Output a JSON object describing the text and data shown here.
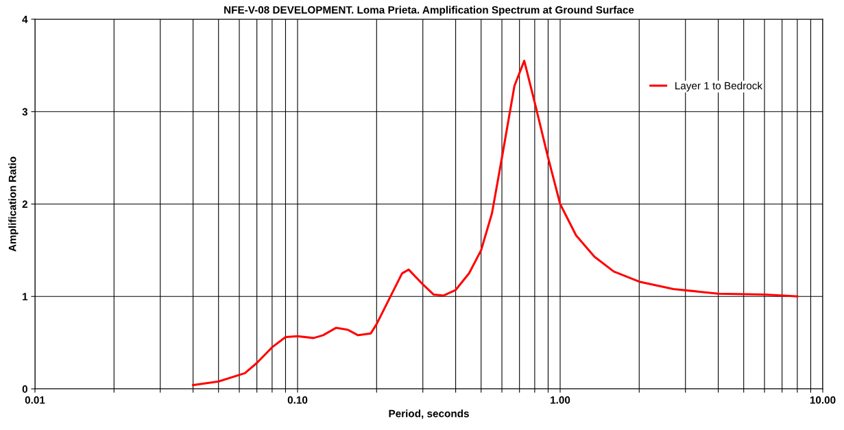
{
  "chart_data": {
    "type": "line",
    "title": "NFE-V-08 DEVELOPMENT. Loma Prieta. Amplification Spectrum at Ground Surface",
    "xlabel": "Period, seconds",
    "ylabel": "Amplification Ratio",
    "log": "x",
    "x": [
      0.04,
      0.05,
      0.063,
      0.07,
      0.08,
      0.09,
      0.1,
      0.115,
      0.125,
      0.14,
      0.155,
      0.17,
      0.19,
      0.2,
      0.25,
      0.265,
      0.3,
      0.33,
      0.36,
      0.4,
      0.45,
      0.5,
      0.55,
      0.6,
      0.67,
      0.73,
      0.8,
      0.9,
      1.0,
      1.15,
      1.35,
      1.6,
      2.0,
      2.7,
      4.0,
      6.0,
      8.0
    ],
    "series": [
      {
        "name": "Layer 1 to Bedrock",
        "color": "#ff0000",
        "values": [
          0.04,
          0.08,
          0.17,
          0.28,
          0.45,
          0.56,
          0.57,
          0.55,
          0.58,
          0.66,
          0.64,
          0.58,
          0.6,
          0.7,
          1.25,
          1.29,
          1.13,
          1.02,
          1.01,
          1.07,
          1.25,
          1.5,
          1.9,
          2.5,
          3.28,
          3.55,
          3.1,
          2.5,
          2.0,
          1.66,
          1.43,
          1.27,
          1.16,
          1.08,
          1.03,
          1.02,
          1.0
        ]
      }
    ],
    "xlim": [
      0.01,
      10
    ],
    "ylim": [
      0,
      4
    ],
    "xticks": [
      {
        "value": 0.01,
        "label": "0.01"
      },
      {
        "value": 0.02,
        "label": null
      },
      {
        "value": 0.03,
        "label": null
      },
      {
        "value": 0.04,
        "label": null
      },
      {
        "value": 0.05,
        "label": null
      },
      {
        "value": 0.06,
        "label": null
      },
      {
        "value": 0.07,
        "label": null
      },
      {
        "value": 0.08,
        "label": null
      },
      {
        "value": 0.09,
        "label": null
      },
      {
        "value": 0.1,
        "label": "0.10"
      },
      {
        "value": 0.2,
        "label": null
      },
      {
        "value": 0.3,
        "label": null
      },
      {
        "value": 0.4,
        "label": null
      },
      {
        "value": 0.5,
        "label": null
      },
      {
        "value": 0.6,
        "label": null
      },
      {
        "value": 0.7,
        "label": null
      },
      {
        "value": 0.8,
        "label": null
      },
      {
        "value": 0.9,
        "label": null
      },
      {
        "value": 1,
        "label": "1.00"
      },
      {
        "value": 2,
        "label": null
      },
      {
        "value": 3,
        "label": null
      },
      {
        "value": 4,
        "label": null
      },
      {
        "value": 5,
        "label": null
      },
      {
        "value": 6,
        "label": null
      },
      {
        "value": 7,
        "label": null
      },
      {
        "value": 8,
        "label": null
      },
      {
        "value": 9,
        "label": null
      },
      {
        "value": 10,
        "label": "10.00"
      }
    ],
    "yticks": [
      0,
      1,
      2,
      3,
      4
    ],
    "grid": true,
    "legend": "top right",
    "marker": "none",
    "line_style": "solid"
  }
}
